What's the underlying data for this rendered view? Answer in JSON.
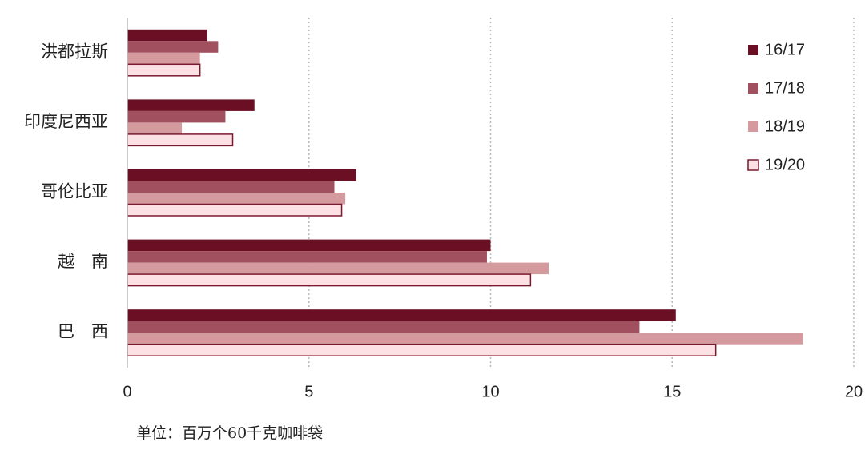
{
  "chart_data": {
    "type": "bar",
    "orientation": "horizontal",
    "categories": [
      "洪都拉斯",
      "印度尼西亚",
      "哥伦比亚",
      "越　南",
      "巴　西"
    ],
    "series": [
      {
        "name": "16/17",
        "color": "#6b0f24",
        "values": [
          2.2,
          3.5,
          6.3,
          10.0,
          15.1
        ]
      },
      {
        "name": "17/18",
        "color": "#a0505f",
        "values": [
          2.5,
          2.7,
          5.7,
          9.9,
          14.1
        ]
      },
      {
        "name": "18/19",
        "color": "#d49a9e",
        "values": [
          2.0,
          1.5,
          6.0,
          11.6,
          18.6
        ]
      },
      {
        "name": "19/20",
        "color": "#fde0e3",
        "values": [
          2.0,
          2.9,
          5.9,
          11.1,
          16.2
        ]
      }
    ],
    "xlim": [
      0,
      20
    ],
    "xticks": [
      0,
      5,
      10,
      15,
      20
    ],
    "grid": true,
    "legend": "right",
    "note": "单位：百万个60千克咖啡袋"
  }
}
